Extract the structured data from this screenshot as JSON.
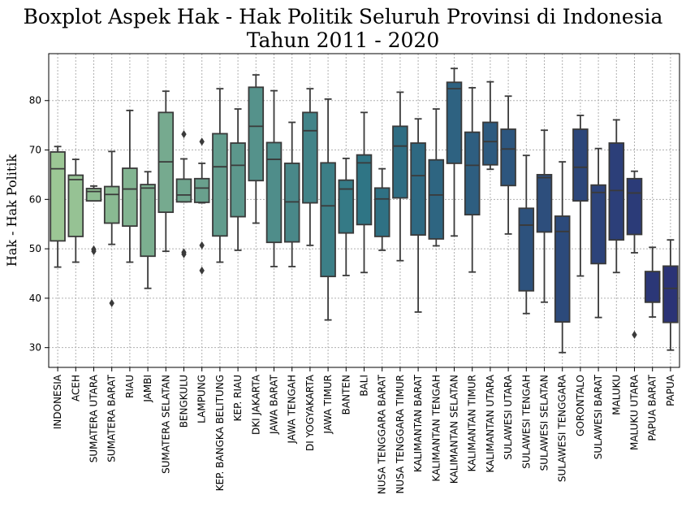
{
  "chart_data": {
    "type": "boxplot",
    "title": "Boxplot Aspek Hak - Hak Politik Seluruh Provinsi di Indonesia",
    "subtitle": "Tahun 2011 - 2020",
    "xlabel": "",
    "ylabel": "Hak - Hak Politik",
    "ylim": [
      26,
      89.5
    ],
    "yticks": [
      30,
      40,
      50,
      60,
      70,
      80
    ],
    "grid": true,
    "palette": "crest (light green to dark blue)",
    "categories": [
      "INDONESIA",
      "ACEH",
      "SUMATERA UTARA",
      "SUMATERA BARAT",
      "RIAU",
      "JAMBI",
      "SUMATERA SELATAN",
      "BENGKULU",
      "LAMPUNG",
      "KEP. BANGKA BELITUNG",
      "KEP. RIAU",
      "DKI JAKARTA",
      "JAWA BARAT",
      "JAWA TENGAH",
      "DI YOGYAKARTA",
      "JAWA TIMUR",
      "BANTEN",
      "BALI",
      "NUSA TENGGARA BARAT",
      "NUSA TENGGARA TIMUR",
      "KALIMANTAN BARAT",
      "KALIMANTAN TENGAH",
      "KALIMANTAN SELATAN",
      "KALIMANTAN TIMUR",
      "KALIMANTAN UTARA",
      "SULAWESI UTARA",
      "SULAWESI TENGAH",
      "SULAWESI SELATAN",
      "SULAWESI TENGGARA",
      "GORONTALO",
      "SULAWESI BARAT",
      "MALUKU",
      "MALUKU UTARA",
      "PAPUA BARAT",
      "PAPUA"
    ],
    "boxes": [
      {
        "whisker_low": 46.3,
        "q1": 51.6,
        "median": 66.2,
        "q3": 69.6,
        "whisker_high": 70.7,
        "outliers": []
      },
      {
        "whisker_low": 47.3,
        "q1": 52.5,
        "median": 64.0,
        "q3": 64.9,
        "whisker_high": 68.1,
        "outliers": []
      },
      {
        "whisker_low": 59.7,
        "q1": 59.7,
        "median": 61.6,
        "q3": 62.2,
        "whisker_high": 62.7,
        "outliers": [
          49.5,
          49.9
        ]
      },
      {
        "whisker_low": 50.9,
        "q1": 55.2,
        "median": 61.0,
        "q3": 62.6,
        "whisker_high": 69.7,
        "outliers": [
          39.0
        ]
      },
      {
        "whisker_low": 47.3,
        "q1": 54.6,
        "median": 62.1,
        "q3": 66.3,
        "whisker_high": 78.0,
        "outliers": []
      },
      {
        "whisker_low": 42.0,
        "q1": 48.5,
        "median": 62.3,
        "q3": 63.0,
        "whisker_high": 65.6,
        "outliers": []
      },
      {
        "whisker_low": 49.5,
        "q1": 57.4,
        "median": 67.6,
        "q3": 77.6,
        "whisker_high": 81.9,
        "outliers": []
      },
      {
        "whisker_low": 59.5,
        "q1": 59.5,
        "median": 60.9,
        "q3": 64.1,
        "whisker_high": 68.2,
        "outliers": [
          73.2,
          49.3,
          48.9
        ]
      },
      {
        "whisker_low": 59.3,
        "q1": 59.4,
        "median": 62.3,
        "q3": 64.2,
        "whisker_high": 67.3,
        "outliers": [
          71.7,
          50.7,
          45.6
        ]
      },
      {
        "whisker_low": 47.3,
        "q1": 52.6,
        "median": 66.6,
        "q3": 73.3,
        "whisker_high": 82.4,
        "outliers": []
      },
      {
        "whisker_low": 49.7,
        "q1": 56.5,
        "median": 66.9,
        "q3": 71.4,
        "whisker_high": 78.3,
        "outliers": []
      },
      {
        "whisker_low": 55.2,
        "q1": 63.8,
        "median": 74.8,
        "q3": 82.7,
        "whisker_high": 85.2,
        "outliers": []
      },
      {
        "whisker_low": 46.4,
        "q1": 51.3,
        "median": 68.1,
        "q3": 71.5,
        "whisker_high": 82.0,
        "outliers": []
      },
      {
        "whisker_low": 46.4,
        "q1": 51.4,
        "median": 59.5,
        "q3": 67.3,
        "whisker_high": 75.6,
        "outliers": []
      },
      {
        "whisker_low": 50.7,
        "q1": 59.3,
        "median": 73.9,
        "q3": 77.6,
        "whisker_high": 82.4,
        "outliers": []
      },
      {
        "whisker_low": 35.6,
        "q1": 44.4,
        "median": 58.7,
        "q3": 67.4,
        "whisker_high": 80.3,
        "outliers": []
      },
      {
        "whisker_low": 44.6,
        "q1": 53.2,
        "median": 62.1,
        "q3": 63.9,
        "whisker_high": 68.3,
        "outliers": []
      },
      {
        "whisker_low": 45.2,
        "q1": 54.9,
        "median": 67.4,
        "q3": 69.0,
        "whisker_high": 77.6,
        "outliers": []
      },
      {
        "whisker_low": 49.7,
        "q1": 52.5,
        "median": 60.1,
        "q3": 62.3,
        "whisker_high": 66.2,
        "outliers": []
      },
      {
        "whisker_low": 47.6,
        "q1": 60.3,
        "median": 70.8,
        "q3": 74.8,
        "whisker_high": 81.7,
        "outliers": []
      },
      {
        "whisker_low": 37.2,
        "q1": 52.8,
        "median": 64.8,
        "q3": 71.4,
        "whisker_high": 76.3,
        "outliers": []
      },
      {
        "whisker_low": 50.6,
        "q1": 52.0,
        "median": 60.9,
        "q3": 68.0,
        "whisker_high": 78.3,
        "outliers": []
      },
      {
        "whisker_low": 52.6,
        "q1": 67.3,
        "median": 82.4,
        "q3": 83.7,
        "whisker_high": 86.5,
        "outliers": []
      },
      {
        "whisker_low": 45.3,
        "q1": 56.9,
        "median": 66.9,
        "q3": 73.6,
        "whisker_high": 82.6,
        "outliers": []
      },
      {
        "whisker_low": 66.1,
        "q1": 67.0,
        "median": 71.7,
        "q3": 75.6,
        "whisker_high": 83.8,
        "outliers": []
      },
      {
        "whisker_low": 53.0,
        "q1": 62.8,
        "median": 70.2,
        "q3": 74.2,
        "whisker_high": 80.9,
        "outliers": []
      },
      {
        "whisker_low": 36.9,
        "q1": 41.5,
        "median": 54.8,
        "q3": 58.2,
        "whisker_high": 68.9,
        "outliers": []
      },
      {
        "whisker_low": 39.2,
        "q1": 53.4,
        "median": 64.4,
        "q3": 65.0,
        "whisker_high": 74.0,
        "outliers": []
      },
      {
        "whisker_low": 29.0,
        "q1": 35.2,
        "median": 53.5,
        "q3": 56.6,
        "whisker_high": 67.6,
        "outliers": []
      },
      {
        "whisker_low": 44.5,
        "q1": 59.7,
        "median": 66.5,
        "q3": 74.2,
        "whisker_high": 77.0,
        "outliers": []
      },
      {
        "whisker_low": 36.1,
        "q1": 47.0,
        "median": 61.4,
        "q3": 62.9,
        "whisker_high": 70.3,
        "outliers": []
      },
      {
        "whisker_low": 45.2,
        "q1": 51.8,
        "median": 61.8,
        "q3": 71.4,
        "whisker_high": 76.1,
        "outliers": []
      },
      {
        "whisker_low": 49.2,
        "q1": 52.9,
        "median": 61.3,
        "q3": 64.2,
        "whisker_high": 65.7,
        "outliers": [
          32.6
        ]
      },
      {
        "whisker_low": 36.2,
        "q1": 39.2,
        "median": 39.2,
        "q3": 45.4,
        "whisker_high": 50.3,
        "outliers": []
      },
      {
        "whisker_low": 29.5,
        "q1": 35.1,
        "median": 42.0,
        "q3": 46.5,
        "whisker_high": 51.8,
        "outliers": []
      }
    ]
  }
}
